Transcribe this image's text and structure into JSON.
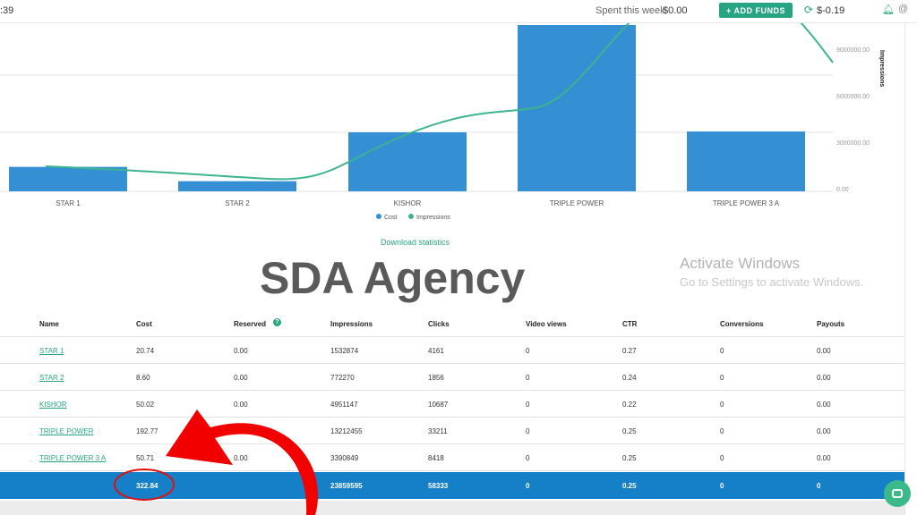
{
  "header": {
    "time": ":39",
    "spent_label": "Spent this week",
    "spent_value": "$0.00",
    "add_funds": "+ ADD FUNDS",
    "balance": "$-0.19"
  },
  "chart_data": {
    "type": "bar",
    "categories": [
      "STAR 1",
      "STAR 2",
      "KISHOR",
      "TRIPLE POWER",
      "TRIPLE POWER 3 A"
    ],
    "series": [
      {
        "name": "Cost",
        "type": "bar",
        "color": "#3490d3",
        "values": [
          20.74,
          8.6,
          50.02,
          192.77,
          50.71
        ]
      },
      {
        "name": "Impressions",
        "type": "line",
        "color": "#3db38f",
        "values": [
          1532874,
          772270,
          4951147,
          13212455,
          3390849
        ]
      }
    ],
    "y2label": "Impressions",
    "y2ticks": [
      "0.00",
      "3000000.00",
      "6000000.00",
      "9000000.00"
    ],
    "legend": "bottom"
  },
  "download_link": "Download statistics",
  "table": {
    "columns": [
      "Name",
      "Cost",
      "Reserved",
      "Impressions",
      "Clicks",
      "Video views",
      "CTR",
      "Conversions",
      "Payouts"
    ],
    "rows": [
      [
        "STAR 1",
        "20.74",
        "0.00",
        "1532874",
        "4161",
        "0",
        "0.27",
        "0",
        "0.00"
      ],
      [
        "STAR 2",
        "8.60",
        "0.00",
        "772270",
        "1856",
        "0",
        "0.24",
        "0",
        "0.00"
      ],
      [
        "KISHOR",
        "50.02",
        "0.00",
        "4951147",
        "10687",
        "0",
        "0.22",
        "0",
        "0.00"
      ],
      [
        "TRIPLE POWER",
        "192.77",
        "",
        "13212455",
        "33211",
        "0",
        "0.25",
        "0",
        "0.00"
      ],
      [
        "TRIPLE POWER 3 A",
        "50.71",
        "0.00",
        "3390849",
        "8418",
        "0",
        "0.25",
        "0",
        "0.00"
      ]
    ],
    "totals": [
      "",
      "322.84",
      "",
      "23859595",
      "58333",
      "0",
      "0.25",
      "0",
      "0"
    ]
  },
  "watermark": "SDA Agency",
  "os_notice": {
    "title": "Activate Windows",
    "subtitle": "Go to Settings to activate Windows."
  }
}
